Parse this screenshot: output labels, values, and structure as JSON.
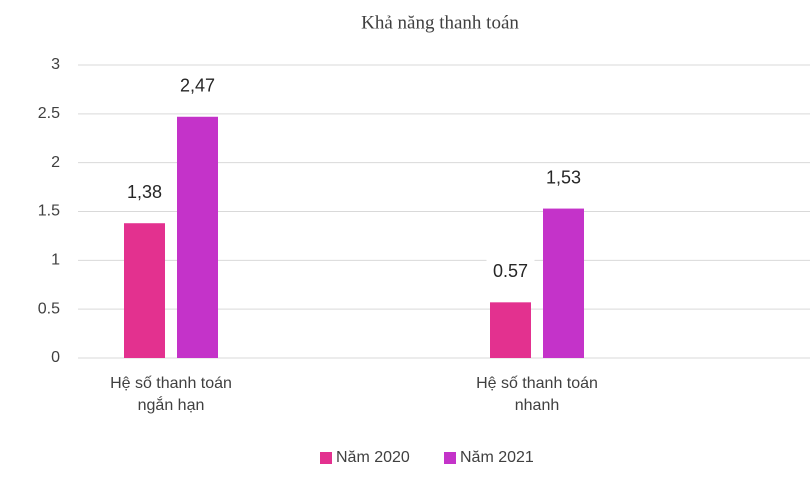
{
  "chart_data": {
    "type": "bar",
    "title": "Khả năng thanh toán",
    "categories": [
      "Hệ số thanh toán ngắn hạn",
      "Hệ số thanh toán nhanh"
    ],
    "series": [
      {
        "name": "Năm 2020",
        "color": "#e3318f",
        "values": [
          1.38,
          0.57
        ],
        "value_labels": [
          "1,38",
          "0.57"
        ]
      },
      {
        "name": "Năm 2021",
        "color": "#c433c9",
        "values": [
          2.47,
          1.53
        ],
        "value_labels": [
          "2,47",
          "1,53"
        ]
      }
    ],
    "ylim": [
      0,
      3
    ],
    "yticks": [
      0,
      0.5,
      1,
      1.5,
      2,
      2.5,
      3
    ],
    "grid": true,
    "legend": "bottom"
  }
}
